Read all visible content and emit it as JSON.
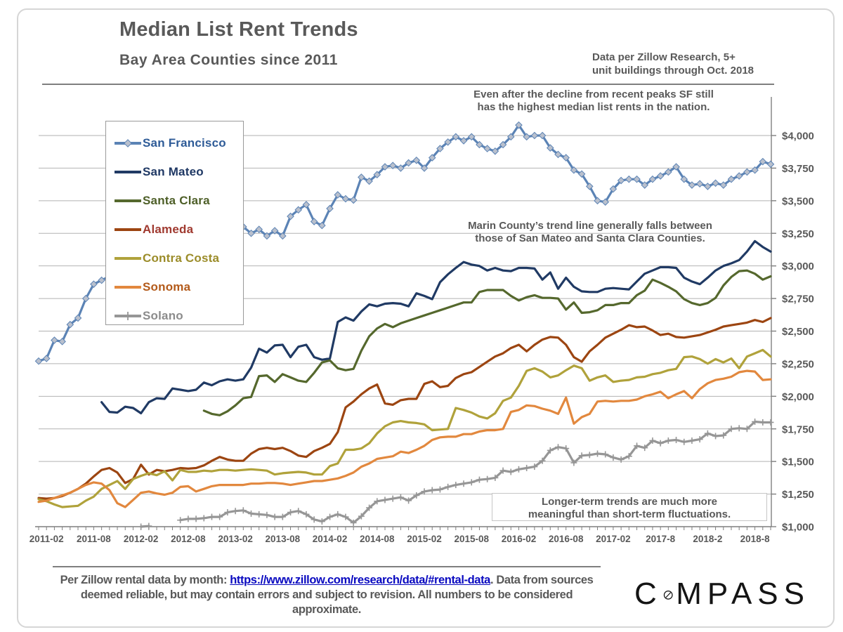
{
  "header": {
    "title": "Median List Rent Trends",
    "subtitle": "Bay Area Counties since 2011",
    "source_note_line1": "Data per Zillow Research, 5+",
    "source_note_line2": "unit buildings through Oct. 2018"
  },
  "annotations": {
    "sf_line1": "Even after the decline from recent peaks SF still",
    "sf_line2": "has the highest median list rents in the nation.",
    "marin_line1": "Marin County’s  trend line generally falls between",
    "marin_line2": "those of San Mateo and Santa Clara Counties.",
    "longterm_line1": "Longer-term trends are much more",
    "longterm_line2": "meaningful than short-term  fluctuations."
  },
  "footer": {
    "text_before_link": "Per Zillow rental data by month: ",
    "link_text": "https://www.zillow.com/research/data/#rental-data",
    "text_after_link": ". Data from sources  deemed reliable, but may contain errors and subject to  revision. All numbers to be considered  approximate.",
    "logo_text_c": "C",
    "logo_text_rest": "MPASS"
  },
  "chart_data": {
    "type": "line",
    "title": "Median List Rent Trends",
    "x_unit": "month",
    "x_start": "2011-01",
    "x_end": "2018-10",
    "x_tick_labels": [
      "2011-02",
      "2011-08",
      "2012-02",
      "2012-08",
      "2013-02",
      "2013-08",
      "2014-02",
      "2014-08",
      "2015-02",
      "2015-08",
      "2016-02",
      "2016-08",
      "2017-02",
      "2017-8",
      "2018-2",
      "2018-8"
    ],
    "x_tick_month_indices": [
      1,
      7,
      13,
      19,
      25,
      31,
      37,
      43,
      49,
      55,
      61,
      67,
      73,
      79,
      85,
      91
    ],
    "y_ticks": [
      1000,
      1250,
      1500,
      1750,
      2000,
      2250,
      2500,
      2750,
      3000,
      3250,
      3500,
      3750,
      4000
    ],
    "y_tick_labels": [
      "$1,000",
      "$1,250",
      "$1,500",
      "$1,750",
      "$2,000",
      "$2,250",
      "$2,500",
      "$2,750",
      "$3,000",
      "$3,250",
      "$3,500",
      "$3,750",
      "$4,000"
    ],
    "ylim": [
      1000,
      4250
    ],
    "grid": true,
    "legend_position": "upper-left",
    "series": [
      {
        "name": "San Francisco",
        "color": "#5b83b5",
        "label_color": "#2e5b97",
        "marker": "diamond",
        "marker_fill": "#b9c0cd",
        "values": [
          2270,
          2290,
          2430,
          2420,
          2550,
          2600,
          2750,
          2860,
          2890,
          2920,
          2960,
          3000,
          3020,
          3060,
          3120,
          3160,
          3190,
          3220,
          3240,
          3260,
          3280,
          3240,
          3150,
          3060,
          3000,
          3000,
          3300,
          3250,
          3280,
          3230,
          3270,
          3230,
          3380,
          3430,
          3470,
          3340,
          3310,
          3440,
          3545,
          3515,
          3505,
          3680,
          3650,
          3700,
          3760,
          3770,
          3750,
          3790,
          3810,
          3750,
          3830,
          3900,
          3950,
          3990,
          3960,
          3990,
          3930,
          3900,
          3880,
          3930,
          3990,
          4080,
          3990,
          4000,
          4000,
          3905,
          3855,
          3830,
          3735,
          3705,
          3610,
          3500,
          3490,
          3590,
          3655,
          3665,
          3665,
          3620,
          3665,
          3690,
          3720,
          3760,
          3665,
          3620,
          3630,
          3610,
          3635,
          3620,
          3665,
          3690,
          3720,
          3735,
          3800,
          3780
        ]
      },
      {
        "name": "San Mateo",
        "color": "#203a64",
        "label_color": "#1f3864",
        "marker": null,
        "values": [
          null,
          null,
          null,
          null,
          null,
          null,
          null,
          null,
          1955,
          1880,
          1875,
          1920,
          1910,
          1870,
          1955,
          1985,
          1980,
          2060,
          2050,
          2040,
          2050,
          2105,
          2085,
          2115,
          2130,
          2120,
          2130,
          2220,
          2365,
          2335,
          2390,
          2395,
          2300,
          2380,
          2395,
          2300,
          2280,
          2290,
          2570,
          2605,
          2580,
          2650,
          2705,
          2690,
          2710,
          2715,
          2710,
          2690,
          2790,
          2770,
          2745,
          2875,
          2935,
          2985,
          3030,
          3010,
          3000,
          2965,
          2985,
          2965,
          2960,
          2985,
          2985,
          2980,
          2895,
          2950,
          2825,
          2910,
          2840,
          2805,
          2800,
          2800,
          2825,
          2830,
          2825,
          2820,
          2880,
          2940,
          2965,
          2990,
          2990,
          2985,
          2910,
          2880,
          2860,
          2910,
          2965,
          3000,
          3020,
          3045,
          3110,
          3190,
          3145,
          3110
        ]
      },
      {
        "name": "Santa Clara",
        "color": "#55682d",
        "label_color": "#4e5f28",
        "marker": null,
        "values": [
          null,
          null,
          null,
          null,
          null,
          null,
          null,
          null,
          null,
          null,
          null,
          null,
          null,
          null,
          null,
          null,
          null,
          null,
          null,
          null,
          null,
          1890,
          1865,
          1855,
          1885,
          1930,
          1985,
          1995,
          2155,
          2160,
          2110,
          2170,
          2145,
          2120,
          2110,
          2180,
          2260,
          2275,
          2215,
          2200,
          2210,
          2350,
          2460,
          2520,
          2555,
          2530,
          2560,
          2580,
          2600,
          2620,
          2640,
          2660,
          2680,
          2700,
          2720,
          2720,
          2800,
          2815,
          2815,
          2815,
          2770,
          2735,
          2760,
          2775,
          2755,
          2755,
          2750,
          2665,
          2720,
          2640,
          2645,
          2660,
          2700,
          2700,
          2715,
          2715,
          2775,
          2810,
          2895,
          2870,
          2840,
          2805,
          2745,
          2715,
          2700,
          2715,
          2755,
          2850,
          2915,
          2960,
          2965,
          2940,
          2895,
          2920
        ]
      },
      {
        "name": "Alameda",
        "color": "#9c4511",
        "label_color": "#a03a30",
        "marker": null,
        "values": [
          1220,
          1215,
          1220,
          1235,
          1260,
          1290,
          1330,
          1385,
          1435,
          1450,
          1415,
          1335,
          1365,
          1475,
          1400,
          1435,
          1425,
          1435,
          1450,
          1445,
          1450,
          1470,
          1505,
          1535,
          1515,
          1505,
          1505,
          1560,
          1595,
          1605,
          1595,
          1605,
          1580,
          1545,
          1535,
          1580,
          1605,
          1635,
          1725,
          1915,
          1960,
          2015,
          2060,
          2090,
          1945,
          1935,
          1970,
          1980,
          1980,
          2095,
          2115,
          2070,
          2080,
          2140,
          2170,
          2185,
          2225,
          2265,
          2305,
          2330,
          2370,
          2395,
          2345,
          2395,
          2435,
          2455,
          2450,
          2395,
          2300,
          2265,
          2345,
          2395,
          2450,
          2480,
          2510,
          2545,
          2530,
          2535,
          2505,
          2470,
          2480,
          2455,
          2450,
          2460,
          2470,
          2490,
          2510,
          2535,
          2545,
          2555,
          2565,
          2585,
          2570,
          2600
        ]
      },
      {
        "name": "Contra Costa",
        "color": "#b0a23b",
        "label_color": "#9b8c29",
        "marker": null,
        "values": [
          1210,
          1195,
          1170,
          1150,
          1155,
          1160,
          1200,
          1230,
          1290,
          1320,
          1350,
          1290,
          1365,
          1390,
          1410,
          1395,
          1425,
          1355,
          1435,
          1420,
          1420,
          1430,
          1425,
          1435,
          1435,
          1430,
          1435,
          1440,
          1435,
          1430,
          1400,
          1410,
          1415,
          1420,
          1415,
          1400,
          1400,
          1465,
          1485,
          1590,
          1590,
          1600,
          1640,
          1715,
          1770,
          1800,
          1810,
          1800,
          1795,
          1785,
          1740,
          1745,
          1750,
          1910,
          1895,
          1875,
          1845,
          1830,
          1870,
          1965,
          1990,
          2080,
          2195,
          2215,
          2190,
          2145,
          2160,
          2200,
          2235,
          2215,
          2120,
          2145,
          2160,
          2110,
          2120,
          2125,
          2145,
          2150,
          2170,
          2180,
          2200,
          2210,
          2300,
          2305,
          2285,
          2250,
          2285,
          2260,
          2290,
          2215,
          2305,
          2330,
          2355,
          2305
        ]
      },
      {
        "name": "Sonoma",
        "color": "#e2883e",
        "label_color": "#b35a1a",
        "marker": null,
        "values": [
          1190,
          1200,
          1220,
          1240,
          1260,
          1290,
          1320,
          1340,
          1330,
          1280,
          1180,
          1150,
          1205,
          1260,
          1270,
          1255,
          1245,
          1260,
          1305,
          1310,
          1270,
          1290,
          1310,
          1320,
          1320,
          1320,
          1320,
          1330,
          1330,
          1335,
          1335,
          1330,
          1320,
          1330,
          1340,
          1350,
          1350,
          1360,
          1370,
          1390,
          1415,
          1460,
          1485,
          1520,
          1530,
          1540,
          1575,
          1565,
          1590,
          1620,
          1665,
          1685,
          1690,
          1690,
          1710,
          1710,
          1730,
          1740,
          1740,
          1750,
          1880,
          1895,
          1930,
          1925,
          1905,
          1890,
          1865,
          1990,
          1790,
          1840,
          1865,
          1960,
          1965,
          1960,
          1965,
          1965,
          1975,
          2000,
          2015,
          2035,
          1985,
          2015,
          2040,
          1985,
          2055,
          2100,
          2125,
          2135,
          2150,
          2185,
          2195,
          2190,
          2125,
          2130
        ]
      },
      {
        "name": "Solano",
        "color": "#969696",
        "label_color": "#8c8c8c",
        "marker": "plus",
        "values": [
          null,
          null,
          null,
          null,
          null,
          null,
          null,
          null,
          null,
          null,
          null,
          null,
          null,
          1000,
          1005,
          null,
          null,
          null,
          1050,
          1060,
          1060,
          1065,
          1075,
          1075,
          1110,
          1120,
          1125,
          1100,
          1095,
          1090,
          1075,
          1075,
          1110,
          1120,
          1095,
          1055,
          1040,
          1075,
          1095,
          1075,
          1030,
          1080,
          1145,
          1195,
          1205,
          1215,
          1225,
          1200,
          1240,
          1270,
          1280,
          1285,
          1305,
          1320,
          1330,
          1340,
          1360,
          1365,
          1375,
          1430,
          1420,
          1440,
          1450,
          1460,
          1505,
          1585,
          1610,
          1600,
          1490,
          1545,
          1550,
          1560,
          1555,
          1530,
          1515,
          1540,
          1620,
          1605,
          1660,
          1640,
          1660,
          1665,
          1650,
          1660,
          1670,
          1715,
          1695,
          1700,
          1750,
          1755,
          1750,
          1805,
          1800,
          1800
        ]
      }
    ]
  }
}
